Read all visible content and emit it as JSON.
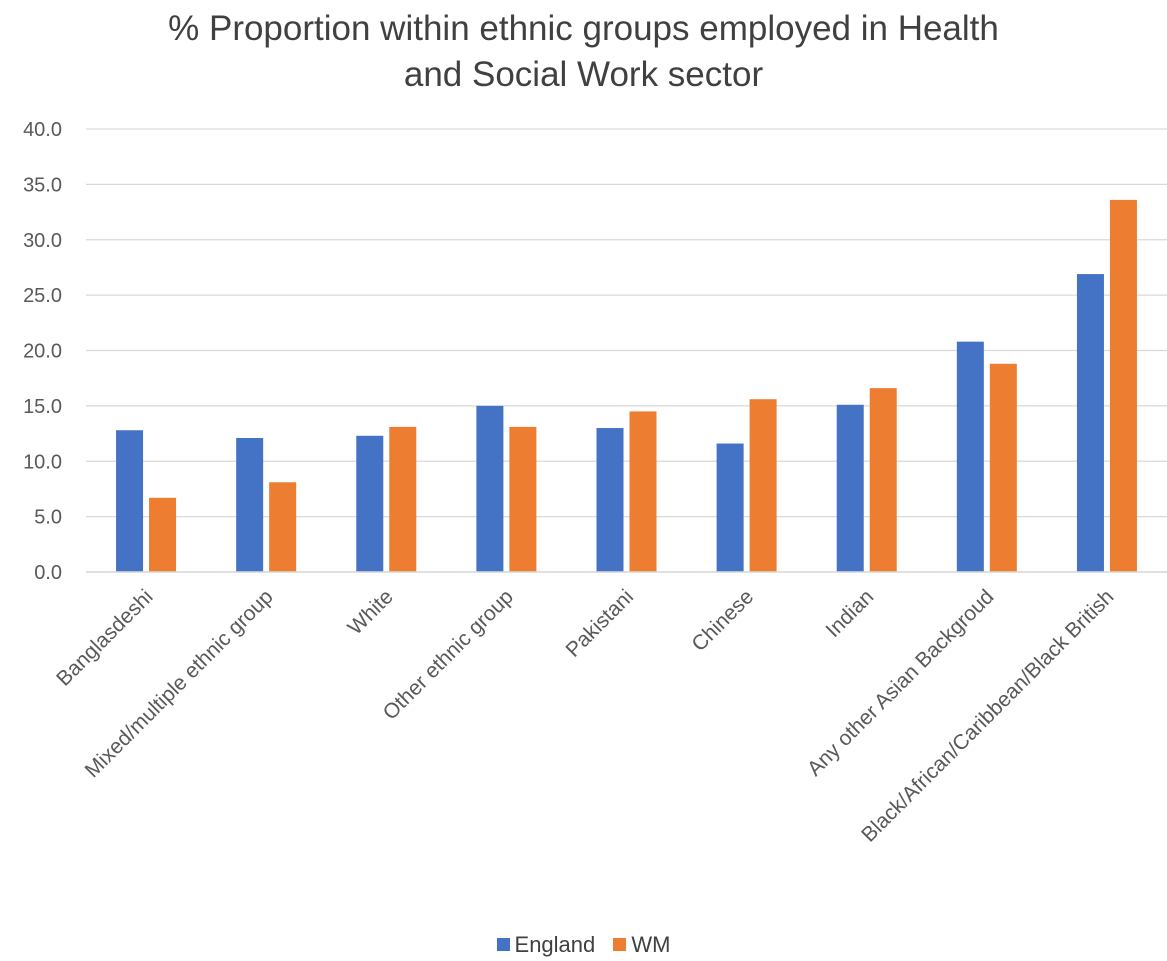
{
  "chart_data": {
    "type": "bar",
    "title_lines": [
      "% Proportion within ethnic groups employed in Health",
      "and Social Work sector"
    ],
    "categories": [
      "Banglasdeshi",
      "Mixed/multiple ethnic group",
      "White",
      "Other ethnic group",
      "Pakistani",
      "Chinese",
      "Indian",
      "Any other Asian Backgroud",
      "Black/African/Caribbean/Black British"
    ],
    "series": [
      {
        "name": "England",
        "color": "#4472C4",
        "values": [
          12.8,
          12.1,
          12.3,
          15.0,
          13.0,
          11.6,
          15.1,
          20.8,
          26.9
        ]
      },
      {
        "name": "WM",
        "color": "#ED7D31",
        "values": [
          6.7,
          8.1,
          13.1,
          13.1,
          14.5,
          15.6,
          16.6,
          18.8,
          33.6
        ]
      }
    ],
    "ylim": [
      0,
      40
    ],
    "yticks": [
      "0.0",
      "5.0",
      "10.0",
      "15.0",
      "20.0",
      "25.0",
      "30.0",
      "35.0",
      "40.0"
    ],
    "grid": true,
    "legend_position": "bottom"
  }
}
